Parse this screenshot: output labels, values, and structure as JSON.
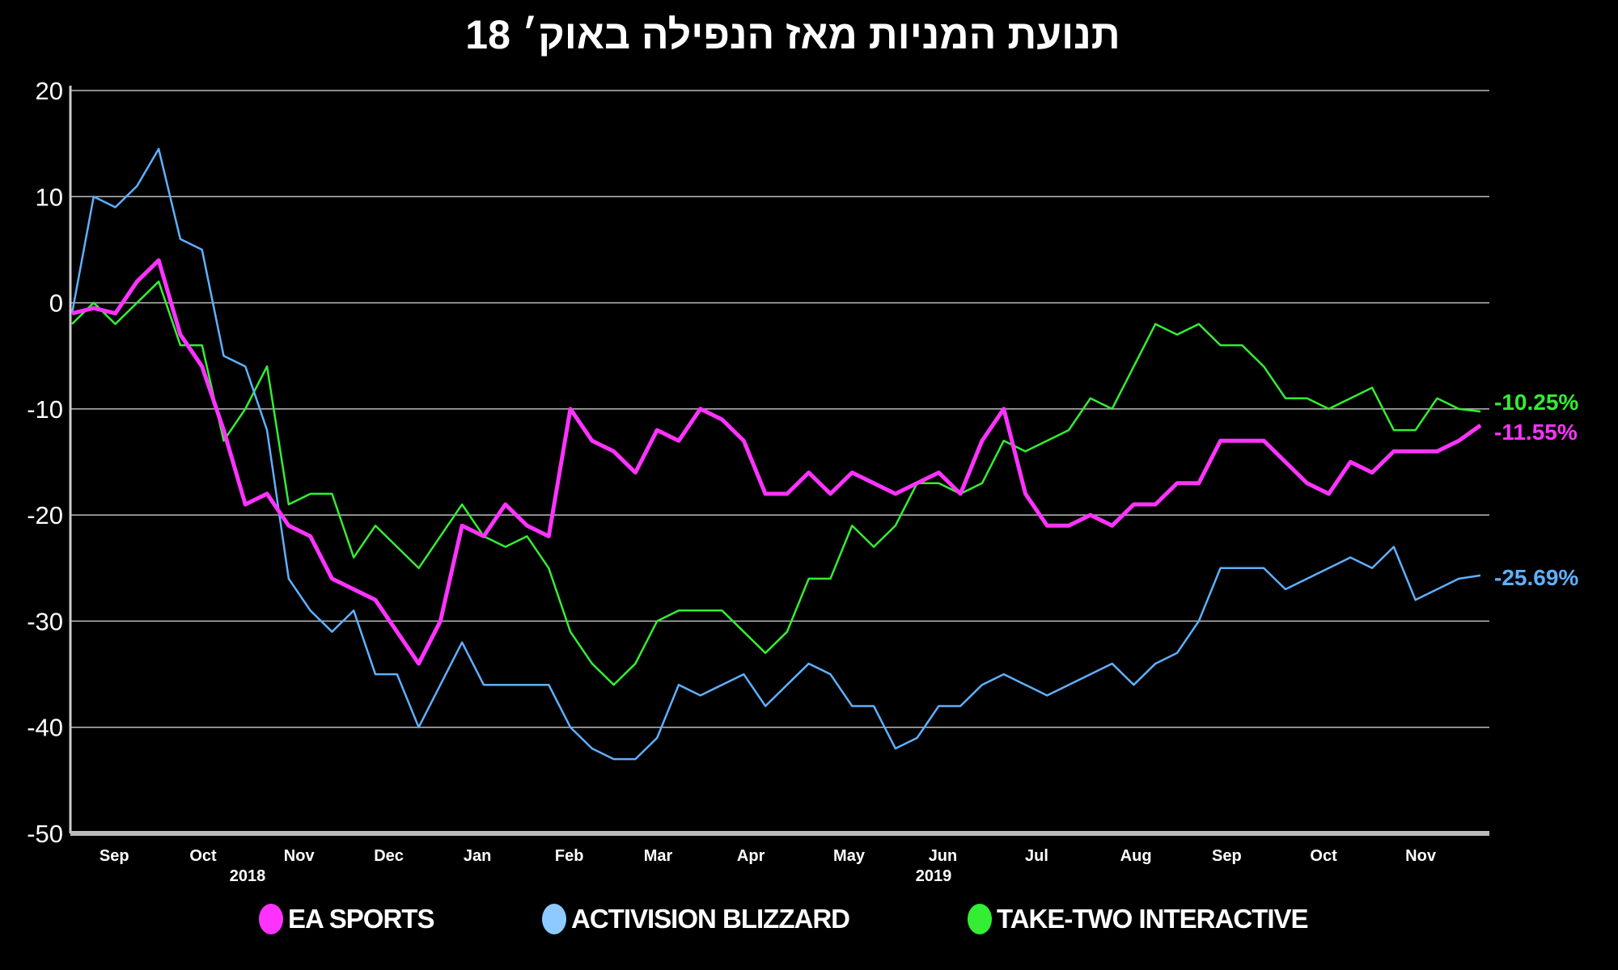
{
  "chart_data": {
    "type": "line",
    "title": "תנועת המניות מאז הנפילה באוק׳ 18",
    "xlabel": "",
    "ylabel": "",
    "ylim": [
      -50,
      20
    ],
    "xlim": [
      0,
      65
    ],
    "x_unit": "weeks",
    "grid": true,
    "legend_placement": "bottom",
    "y_ticks": [
      20,
      10,
      0,
      -10,
      -20,
      -30,
      -40,
      -50
    ],
    "x_ticks": [
      {
        "label": "Sep",
        "x": 1.95
      },
      {
        "label": "Oct",
        "x": 6.05
      },
      {
        "label": "Nov",
        "x": 10.48
      },
      {
        "label": "Dec",
        "x": 14.62
      },
      {
        "label": "Jan",
        "x": 18.71
      },
      {
        "label": "Feb",
        "x": 22.95
      },
      {
        "label": "Mar",
        "x": 27.05
      },
      {
        "label": "Apr",
        "x": 31.33
      },
      {
        "label": "May",
        "x": 35.86
      },
      {
        "label": "Jun",
        "x": 40.19
      },
      {
        "label": "Jul",
        "x": 44.52
      },
      {
        "label": "Aug",
        "x": 49.1
      },
      {
        "label": "Sep",
        "x": 53.29
      },
      {
        "label": "Oct",
        "x": 57.76
      },
      {
        "label": "Nov",
        "x": 62.24
      }
    ],
    "year_labels": [
      {
        "label": "2018",
        "x": 8.1
      },
      {
        "label": "2019",
        "x": 39.76
      }
    ],
    "series": [
      {
        "name": "EA SPORTS",
        "color": "#ff33ff",
        "end_label": "-11.55%",
        "values": [
          -1,
          -0.5,
          -1,
          2,
          4,
          -3,
          -6,
          -12,
          -19,
          -18,
          -21,
          -22,
          -26,
          -27,
          -28,
          -31,
          -34,
          -30,
          -21,
          -22,
          -19,
          -21,
          -22,
          -10,
          -13,
          -14,
          -16,
          -12,
          -13,
          -10,
          -11,
          -13,
          -18,
          -18,
          -16,
          -18,
          -16,
          -17,
          -18,
          -17,
          -16,
          -18,
          -13,
          -10,
          -18,
          -21,
          -21,
          -20,
          -21,
          -19,
          -19,
          -17,
          -17,
          -13,
          -13,
          -13,
          -15,
          -17,
          -18,
          -15,
          -16,
          -14,
          -14,
          -14,
          -13,
          -11.55
        ]
      },
      {
        "name": "ACTIVISION BLIZZARD",
        "color": "#5fb0ff",
        "end_label": "-25.69%",
        "values": [
          -1,
          10,
          9,
          11,
          14.5,
          6,
          5,
          -5,
          -6,
          -12,
          -26,
          -29,
          -31,
          -29,
          -35,
          -35,
          -40,
          -36,
          -32,
          -36,
          -36,
          -36,
          -36,
          -40,
          -42,
          -43,
          -43,
          -41,
          -36,
          -37,
          -36,
          -35,
          -38,
          -36,
          -34,
          -35,
          -38,
          -38,
          -42,
          -41,
          -38,
          -38,
          -36,
          -35,
          -36,
          -37,
          -36,
          -35,
          -34,
          -36,
          -34,
          -33,
          -30,
          -25,
          -25,
          -25,
          -27,
          -26,
          -25,
          -24,
          -25,
          -23,
          -28,
          -27,
          -26,
          -25.69
        ]
      },
      {
        "name": "TAKE-TWO INTERACTIVE",
        "color": "#33ee33",
        "end_label": "-10.25%",
        "values": [
          -2,
          0,
          -2,
          0,
          2,
          -4,
          -4,
          -13,
          -10,
          -6,
          -19,
          -18,
          -18,
          -24,
          -21,
          -23,
          -25,
          -22,
          -19,
          -22,
          -23,
          -22,
          -25,
          -31,
          -34,
          -36,
          -34,
          -30,
          -29,
          -29,
          -29,
          -31,
          -33,
          -31,
          -26,
          -26,
          -21,
          -23,
          -21,
          -17,
          -17,
          -18,
          -17,
          -13,
          -14,
          -13,
          -12,
          -9,
          -10,
          -6,
          -2,
          -3,
          -2,
          -4,
          -4,
          -6,
          -9,
          -9,
          -10,
          -9,
          -8,
          -12,
          -12,
          -9,
          -10,
          -10.25
        ]
      }
    ]
  }
}
